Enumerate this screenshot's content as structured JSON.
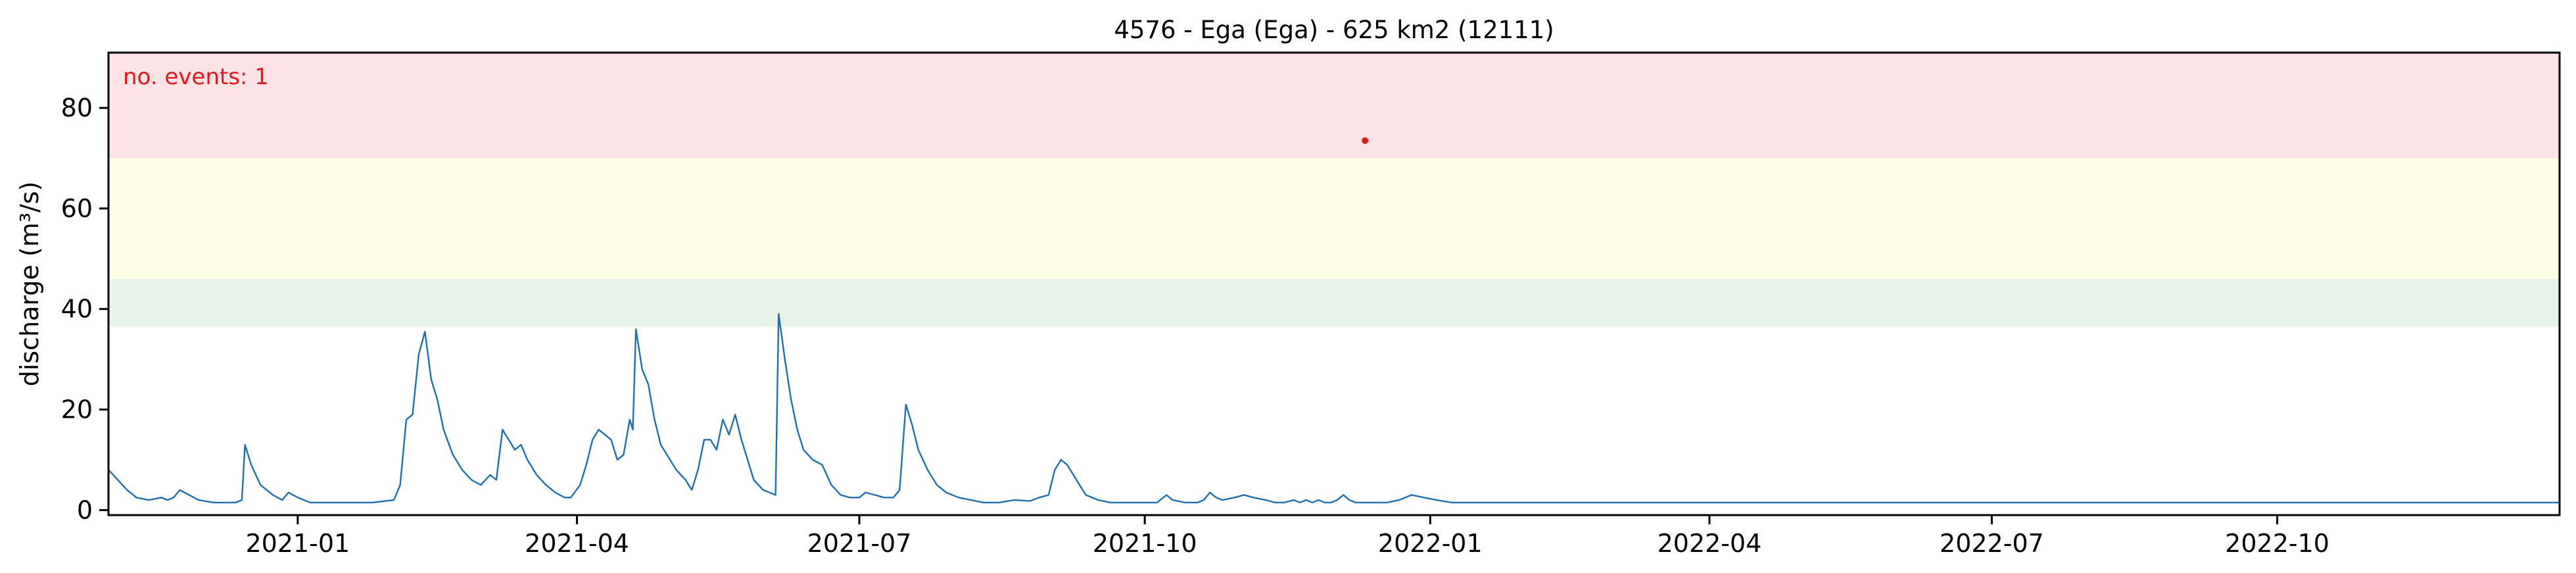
{
  "chart_data": {
    "type": "line",
    "title": "4576 - Ega (Ega) - 625 km2 (12111)",
    "xlabel": "",
    "ylabel": "discharge (m³/s)",
    "annotation": "no. events: 1",
    "xlim": [
      "2020-11-01",
      "2022-12-31"
    ],
    "ylim": [
      -1,
      91
    ],
    "yticks": [
      0,
      20,
      40,
      60,
      80
    ],
    "xticks": [
      {
        "date": "2021-01-01",
        "label": "2021-01"
      },
      {
        "date": "2021-04-01",
        "label": "2021-04"
      },
      {
        "date": "2021-07-01",
        "label": "2021-07"
      },
      {
        "date": "2021-10-01",
        "label": "2021-10"
      },
      {
        "date": "2022-01-01",
        "label": "2022-01"
      },
      {
        "date": "2022-04-01",
        "label": "2022-04"
      },
      {
        "date": "2022-07-01",
        "label": "2022-07"
      },
      {
        "date": "2022-10-01",
        "label": "2022-10"
      }
    ],
    "threshold_bands": [
      {
        "from": 36.5,
        "to": 46,
        "color": "#e6f2e6"
      },
      {
        "from": 46,
        "to": 70,
        "color": "#fefee4"
      },
      {
        "from": 70,
        "to": 91,
        "color": "#fee3e6"
      }
    ],
    "line_color": "#1f6fb0",
    "annotation_color": "#e31a1c",
    "event_marker": {
      "date": "2021-12-11",
      "value": 73.5,
      "color": "#e31a1c"
    },
    "series": [
      {
        "points": [
          [
            "2020-11-01",
            8
          ],
          [
            "2020-11-04",
            6
          ],
          [
            "2020-11-07",
            4
          ],
          [
            "2020-11-10",
            2.5
          ],
          [
            "2020-11-14",
            2
          ],
          [
            "2020-11-18",
            2.5
          ],
          [
            "2020-11-20",
            2
          ],
          [
            "2020-11-22",
            2.5
          ],
          [
            "2020-11-24",
            4
          ],
          [
            "2020-11-27",
            3
          ],
          [
            "2020-11-30",
            2
          ],
          [
            "2020-12-05",
            1.5
          ],
          [
            "2020-12-12",
            1.5
          ],
          [
            "2020-12-14",
            2
          ],
          [
            "2020-12-15",
            13
          ],
          [
            "2020-12-17",
            9
          ],
          [
            "2020-12-20",
            5
          ],
          [
            "2020-12-24",
            3
          ],
          [
            "2020-12-27",
            2
          ],
          [
            "2020-12-29",
            3.5
          ],
          [
            "2021-01-01",
            2.5
          ],
          [
            "2021-01-05",
            1.5
          ],
          [
            "2021-01-15",
            1.5
          ],
          [
            "2021-01-25",
            1.5
          ],
          [
            "2021-02-01",
            2
          ],
          [
            "2021-02-03",
            5
          ],
          [
            "2021-02-05",
            18
          ],
          [
            "2021-02-07",
            19
          ],
          [
            "2021-02-09",
            31
          ],
          [
            "2021-02-11",
            35.5
          ],
          [
            "2021-02-13",
            26
          ],
          [
            "2021-02-15",
            22
          ],
          [
            "2021-02-17",
            16
          ],
          [
            "2021-02-20",
            11
          ],
          [
            "2021-02-23",
            8
          ],
          [
            "2021-02-26",
            6
          ],
          [
            "2021-03-01",
            5
          ],
          [
            "2021-03-04",
            7
          ],
          [
            "2021-03-06",
            6
          ],
          [
            "2021-03-08",
            16
          ],
          [
            "2021-03-10",
            14
          ],
          [
            "2021-03-12",
            12
          ],
          [
            "2021-03-14",
            13
          ],
          [
            "2021-03-16",
            10
          ],
          [
            "2021-03-19",
            7
          ],
          [
            "2021-03-22",
            5
          ],
          [
            "2021-03-25",
            3.5
          ],
          [
            "2021-03-28",
            2.5
          ],
          [
            "2021-03-30",
            2.5
          ],
          [
            "2021-04-02",
            5
          ],
          [
            "2021-04-04",
            9
          ],
          [
            "2021-04-06",
            14
          ],
          [
            "2021-04-08",
            16
          ],
          [
            "2021-04-10",
            15
          ],
          [
            "2021-04-12",
            14
          ],
          [
            "2021-04-14",
            10
          ],
          [
            "2021-04-16",
            11
          ],
          [
            "2021-04-18",
            18
          ],
          [
            "2021-04-19",
            16
          ],
          [
            "2021-04-20",
            36
          ],
          [
            "2021-04-22",
            28
          ],
          [
            "2021-04-24",
            25
          ],
          [
            "2021-04-26",
            18
          ],
          [
            "2021-04-28",
            13
          ],
          [
            "2021-04-30",
            11
          ],
          [
            "2021-05-03",
            8
          ],
          [
            "2021-05-06",
            6
          ],
          [
            "2021-05-08",
            4
          ],
          [
            "2021-05-10",
            8
          ],
          [
            "2021-05-12",
            14
          ],
          [
            "2021-05-14",
            14
          ],
          [
            "2021-05-16",
            12
          ],
          [
            "2021-05-18",
            18
          ],
          [
            "2021-05-20",
            15
          ],
          [
            "2021-05-22",
            19
          ],
          [
            "2021-05-24",
            14
          ],
          [
            "2021-05-26",
            10
          ],
          [
            "2021-05-28",
            6
          ],
          [
            "2021-05-31",
            4
          ],
          [
            "2021-06-04",
            3
          ],
          [
            "2021-06-05",
            39
          ],
          [
            "2021-06-07",
            30
          ],
          [
            "2021-06-09",
            22
          ],
          [
            "2021-06-11",
            16
          ],
          [
            "2021-06-13",
            12
          ],
          [
            "2021-06-16",
            10
          ],
          [
            "2021-06-19",
            9
          ],
          [
            "2021-06-22",
            5
          ],
          [
            "2021-06-25",
            3
          ],
          [
            "2021-06-28",
            2.5
          ],
          [
            "2021-07-01",
            2.5
          ],
          [
            "2021-07-03",
            3.5
          ],
          [
            "2021-07-06",
            3
          ],
          [
            "2021-07-09",
            2.5
          ],
          [
            "2021-07-12",
            2.5
          ],
          [
            "2021-07-14",
            4
          ],
          [
            "2021-07-16",
            21
          ],
          [
            "2021-07-18",
            17
          ],
          [
            "2021-07-20",
            12
          ],
          [
            "2021-07-23",
            8
          ],
          [
            "2021-07-26",
            5
          ],
          [
            "2021-07-29",
            3.5
          ],
          [
            "2021-08-02",
            2.5
          ],
          [
            "2021-08-06",
            2
          ],
          [
            "2021-08-10",
            1.5
          ],
          [
            "2021-08-15",
            1.5
          ],
          [
            "2021-08-20",
            2
          ],
          [
            "2021-08-25",
            1.8
          ],
          [
            "2021-08-28",
            2.5
          ],
          [
            "2021-08-31",
            3
          ],
          [
            "2021-09-02",
            8
          ],
          [
            "2021-09-04",
            10
          ],
          [
            "2021-09-06",
            9
          ],
          [
            "2021-09-08",
            7
          ],
          [
            "2021-09-10",
            5
          ],
          [
            "2021-09-12",
            3
          ],
          [
            "2021-09-16",
            2
          ],
          [
            "2021-09-20",
            1.5
          ],
          [
            "2021-09-25",
            1.5
          ],
          [
            "2021-09-30",
            1.5
          ],
          [
            "2021-10-01",
            1.5
          ],
          [
            "2021-10-05",
            1.5
          ],
          [
            "2021-10-08",
            3
          ],
          [
            "2021-10-10",
            2
          ],
          [
            "2021-10-14",
            1.5
          ],
          [
            "2021-10-18",
            1.5
          ],
          [
            "2021-10-20",
            2
          ],
          [
            "2021-10-22",
            3.5
          ],
          [
            "2021-10-24",
            2.5
          ],
          [
            "2021-10-26",
            2
          ],
          [
            "2021-10-30",
            2.5
          ],
          [
            "2021-11-02",
            3
          ],
          [
            "2021-11-05",
            2.5
          ],
          [
            "2021-11-09",
            2
          ],
          [
            "2021-11-12",
            1.5
          ],
          [
            "2021-11-15",
            1.5
          ],
          [
            "2021-11-18",
            2
          ],
          [
            "2021-11-20",
            1.5
          ],
          [
            "2021-11-22",
            2
          ],
          [
            "2021-11-24",
            1.5
          ],
          [
            "2021-11-26",
            2
          ],
          [
            "2021-11-28",
            1.5
          ],
          [
            "2021-11-30",
            1.5
          ],
          [
            "2021-12-02",
            2
          ],
          [
            "2021-12-04",
            3
          ],
          [
            "2021-12-06",
            2
          ],
          [
            "2021-12-08",
            1.5
          ],
          [
            "2021-12-11",
            1.5
          ],
          [
            "2021-12-14",
            1.5
          ],
          [
            "2021-12-18",
            1.5
          ],
          [
            "2021-12-22",
            2
          ],
          [
            "2021-12-26",
            3
          ],
          [
            "2021-12-30",
            2.5
          ],
          [
            "2022-01-03",
            2
          ],
          [
            "2022-01-08",
            1.5
          ],
          [
            "2022-01-12",
            1.5
          ],
          [
            "2022-01-16",
            1.5
          ],
          [
            "2022-01-22",
            1.5
          ],
          [
            "2022-01-28",
            1.5
          ],
          [
            "2022-02-03",
            1.5
          ],
          [
            "2022-02-09",
            1.5
          ],
          [
            "2022-02-15",
            1.5
          ],
          [
            "2022-02-21",
            1.5
          ],
          [
            "2022-02-27",
            1.5
          ],
          [
            "2022-03-05",
            1.5
          ],
          [
            "2022-03-11",
            1.5
          ],
          [
            "2022-03-17",
            1.5
          ],
          [
            "2022-03-23",
            1.5
          ],
          [
            "2022-03-29",
            1.5
          ],
          [
            "2022-04-04",
            1.5
          ],
          [
            "2022-04-10",
            1.5
          ],
          [
            "2022-04-16",
            1.5
          ],
          [
            "2022-04-22",
            1.5
          ],
          [
            "2022-04-28",
            1.5
          ],
          [
            "2022-05-04",
            1.5
          ],
          [
            "2022-05-10",
            1.5
          ],
          [
            "2022-05-16",
            1.5
          ],
          [
            "2022-05-22",
            1.5
          ],
          [
            "2022-05-28",
            1.5
          ],
          [
            "2022-06-03",
            1.5
          ],
          [
            "2022-06-09",
            1.5
          ],
          [
            "2022-06-15",
            1.5
          ],
          [
            "2022-06-21",
            1.5
          ],
          [
            "2022-06-27",
            1.5
          ],
          [
            "2022-07-03",
            1.5
          ],
          [
            "2022-07-09",
            1.5
          ],
          [
            "2022-07-15",
            1.5
          ],
          [
            "2022-07-21",
            1.5
          ],
          [
            "2022-07-27",
            1.5
          ],
          [
            "2022-08-02",
            1.5
          ],
          [
            "2022-08-08",
            1.5
          ],
          [
            "2022-08-14",
            1.5
          ],
          [
            "2022-08-20",
            1.5
          ],
          [
            "2022-08-26",
            1.5
          ],
          [
            "2022-09-01",
            1.5
          ],
          [
            "2022-09-07",
            1.5
          ],
          [
            "2022-09-13",
            1.5
          ],
          [
            "2022-09-19",
            1.5
          ],
          [
            "2022-09-25",
            1.5
          ],
          [
            "2022-10-01",
            1.5
          ],
          [
            "2022-10-07",
            1.5
          ],
          [
            "2022-10-13",
            1.5
          ],
          [
            "2022-10-19",
            1.5
          ],
          [
            "2022-10-25",
            1.5
          ],
          [
            "2022-10-31",
            1.5
          ],
          [
            "2022-11-06",
            1.5
          ],
          [
            "2022-11-12",
            1.5
          ],
          [
            "2022-11-18",
            1.5
          ],
          [
            "2022-11-24",
            1.5
          ],
          [
            "2022-11-30",
            1.5
          ],
          [
            "2022-12-06",
            1.5
          ],
          [
            "2022-12-12",
            1.5
          ],
          [
            "2022-12-18",
            1.5
          ],
          [
            "2022-12-24",
            1.5
          ],
          [
            "2022-12-31",
            1.5
          ]
        ]
      }
    ]
  }
}
